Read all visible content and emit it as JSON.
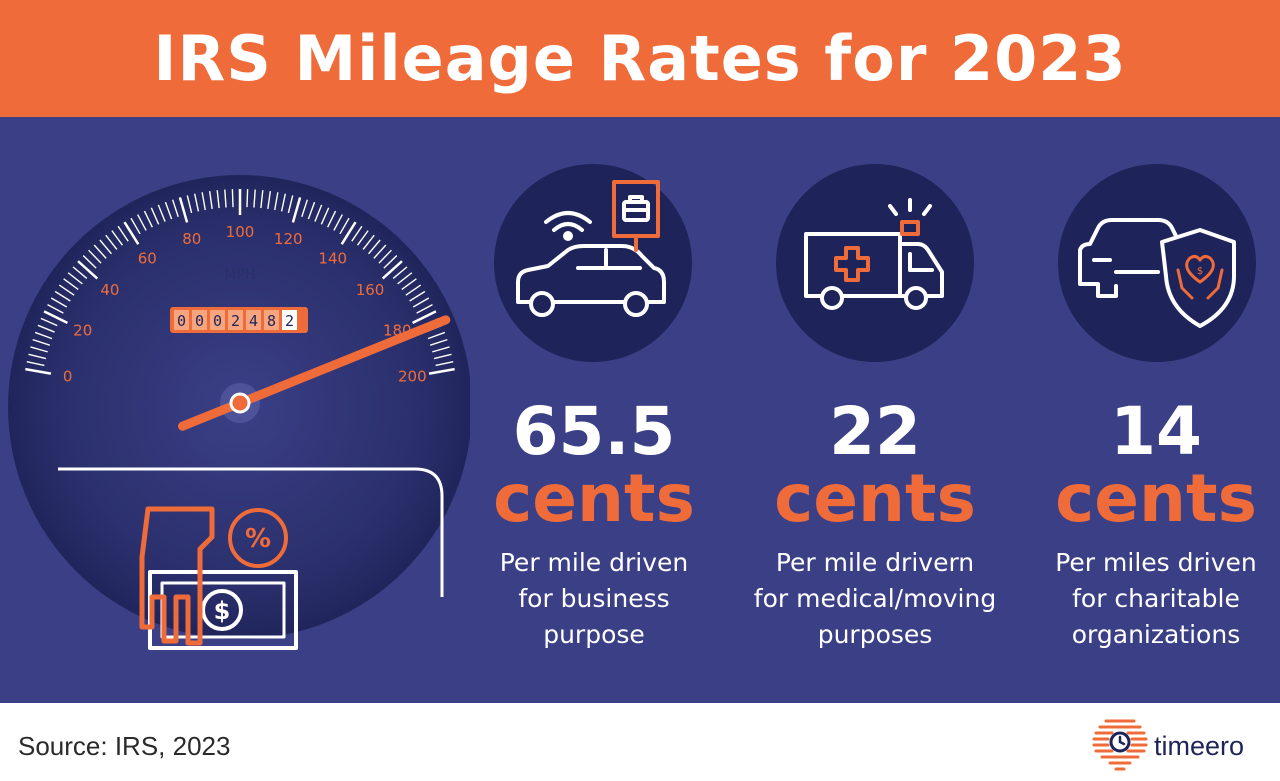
{
  "header": {
    "title": "IRS Mileage Rates for 2023"
  },
  "gauge": {
    "unit_label": "MPH",
    "odometer": "0002482",
    "tick_labels": [
      "0",
      "20",
      "40",
      "60",
      "80",
      "100",
      "120",
      "140",
      "160",
      "180",
      "200"
    ],
    "needle_speed": 185,
    "icons": [
      "speedometer-icon",
      "hand-money-icon",
      "percent-icon",
      "dollar-icon"
    ]
  },
  "rates": [
    {
      "amount": "65.5",
      "unit": "cents",
      "description": "Per mile driven\nfor business\npurpose",
      "icon": "car-briefcase-icon"
    },
    {
      "amount": "22",
      "unit": "cents",
      "description": "Per mile drivern\nfor medical/moving\npurposes",
      "icon": "ambulance-icon"
    },
    {
      "amount": "14",
      "unit": "cents",
      "description": "Per miles driven\nfor charitable\norganizations",
      "icon": "car-shield-heart-icon"
    }
  ],
  "footer": {
    "source": "Source: IRS, 2023",
    "brand": "timeero",
    "brand_icon": "timeero-logo-icon"
  },
  "colors": {
    "orange": "#ef6c3a",
    "navy": "#3b3f86",
    "dark_navy": "#1e2459",
    "white": "#ffffff"
  }
}
